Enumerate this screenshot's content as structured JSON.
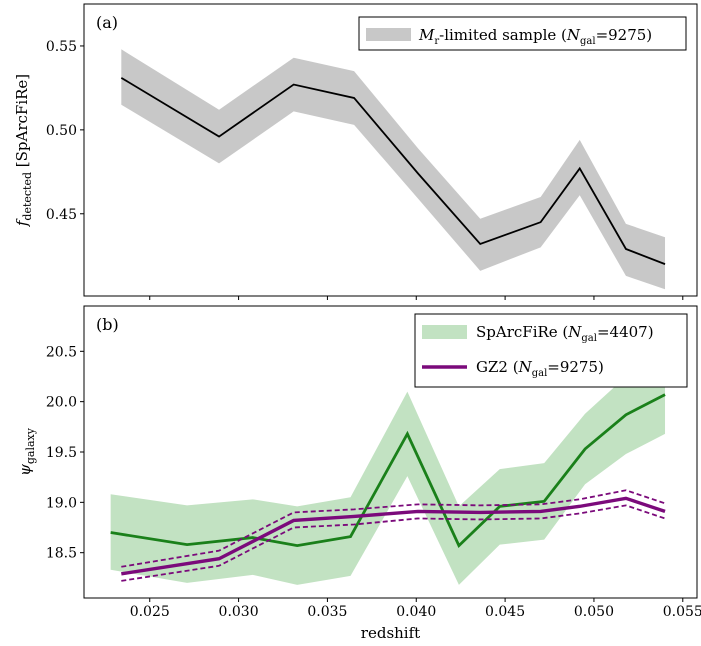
{
  "chart_data": [
    {
      "type": "line",
      "panel_label": "(a)",
      "ylabel": "f_detected [SpArcFiRe]",
      "ylabel_main": "f",
      "ylabel_sub": "detected",
      "ylabel_rest": " [SpArcFiRe]",
      "xlim": [
        0.0213,
        0.0558
      ],
      "ylim": [
        0.401,
        0.575
      ],
      "yticks": [
        0.45,
        0.5,
        0.55
      ],
      "ytick_labels": [
        "0.45",
        "0.50",
        "0.55"
      ],
      "xticks": [
        0.025,
        0.03,
        0.035,
        0.04,
        0.045,
        0.05,
        0.055
      ],
      "grid": false,
      "legend_position": "top-right",
      "series": [
        {
          "name": "M_r-limited sample (N_gal=9275)",
          "legend_parts": [
            "M",
            "r",
            "-limited sample (",
            "N",
            "gal",
            "=9275)"
          ],
          "line_color": "#000000",
          "band_color": "#c8c8c8",
          "x": [
            0.0234,
            0.0289,
            0.0331,
            0.0365,
            0.0401,
            0.0436,
            0.047,
            0.0492,
            0.0518,
            0.054
          ],
          "y": [
            0.531,
            0.496,
            0.527,
            0.519,
            0.474,
            0.432,
            0.445,
            0.477,
            0.429,
            0.42
          ],
          "upper": [
            0.548,
            0.512,
            0.543,
            0.535,
            0.489,
            0.447,
            0.46,
            0.494,
            0.444,
            0.436
          ],
          "lower": [
            0.515,
            0.48,
            0.511,
            0.503,
            0.459,
            0.416,
            0.43,
            0.461,
            0.413,
            0.405
          ]
        }
      ]
    },
    {
      "type": "line",
      "panel_label": "(b)",
      "ylabel": "ψ_galaxy",
      "ylabel_main": "ψ",
      "ylabel_sub": "galaxy",
      "xlabel": "redshift",
      "xlim": [
        0.0213,
        0.0558
      ],
      "ylim": [
        18.05,
        20.95
      ],
      "yticks": [
        18.5,
        19.0,
        19.5,
        20.0,
        20.5
      ],
      "ytick_labels": [
        "18.5",
        "19.0",
        "19.5",
        "20.0",
        "20.5"
      ],
      "xticks": [
        0.025,
        0.03,
        0.035,
        0.04,
        0.045,
        0.05,
        0.055
      ],
      "xtick_labels": [
        "0.025",
        "0.030",
        "0.035",
        "0.040",
        "0.045",
        "0.050",
        "0.055"
      ],
      "grid": false,
      "legend_position": "top-right",
      "series": [
        {
          "name": "SpArcFiRe (N_gal=4407)",
          "legend_parts": [
            "SpArcFiRe (",
            "N",
            "gal",
            "=4407)"
          ],
          "line_color": "#1a801a",
          "band_color": "#c2e2c2",
          "x": [
            0.0228,
            0.0271,
            0.0308,
            0.0333,
            0.0363,
            0.0395,
            0.0424,
            0.0447,
            0.0472,
            0.0495,
            0.0518,
            0.054
          ],
          "y": [
            18.7,
            18.58,
            18.65,
            18.57,
            18.66,
            19.68,
            18.57,
            18.96,
            19.01,
            19.53,
            19.87,
            20.07
          ],
          "upper": [
            19.08,
            18.97,
            19.03,
            18.96,
            19.05,
            20.1,
            18.96,
            19.33,
            19.39,
            19.88,
            20.25,
            20.45
          ],
          "lower": [
            18.33,
            18.2,
            18.28,
            18.18,
            18.27,
            19.26,
            18.18,
            18.58,
            18.63,
            19.18,
            19.48,
            19.68
          ]
        },
        {
          "name": "GZ2 (N_gal=9275)",
          "legend_parts": [
            "GZ2 (",
            "N",
            "gal",
            "=9275)"
          ],
          "line_color": "#7b0a7b",
          "x": [
            0.0234,
            0.0289,
            0.0331,
            0.0365,
            0.0401,
            0.0436,
            0.047,
            0.0492,
            0.0518,
            0.054
          ],
          "y": [
            18.29,
            18.44,
            18.82,
            18.86,
            18.91,
            18.9,
            18.91,
            18.96,
            19.04,
            18.91
          ],
          "upper": [
            18.36,
            18.52,
            18.9,
            18.93,
            18.98,
            18.97,
            18.98,
            19.03,
            19.12,
            18.99
          ],
          "lower": [
            18.22,
            18.37,
            18.75,
            18.78,
            18.84,
            18.83,
            18.84,
            18.89,
            18.97,
            18.84
          ]
        }
      ]
    }
  ]
}
